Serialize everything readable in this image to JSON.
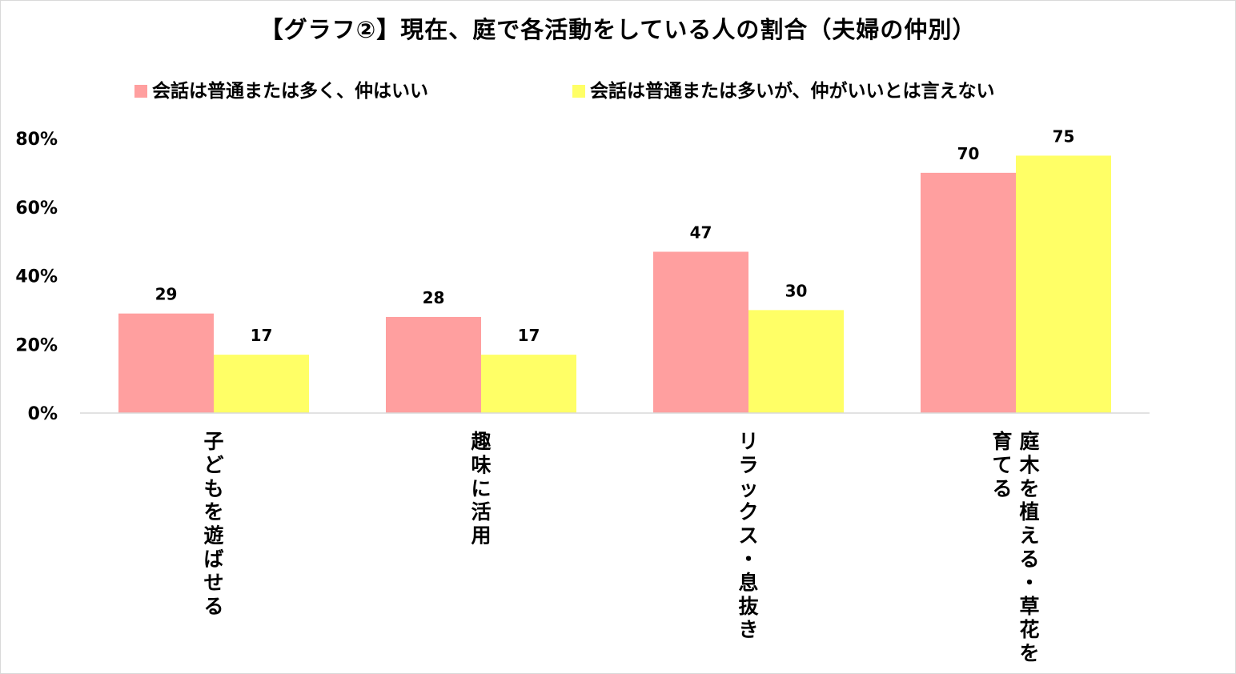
{
  "chart_data": {
    "type": "bar",
    "title": "【グラフ②】現在、庭で各活動をしている人の割合（夫婦の仲別）",
    "categories": [
      [
        "子どもを遊ばせる"
      ],
      [
        "趣味に活用"
      ],
      [
        "リラックス・息抜き"
      ],
      [
        "庭木を植える・草花を",
        "育てる"
      ]
    ],
    "series": [
      {
        "name": "会話は普通または多く、仲はいい",
        "color": "#ff9f9f",
        "values": [
          29,
          28,
          47,
          70
        ]
      },
      {
        "name": "会話は普通または多いが、仲がいいとは言えない",
        "color": "#ffff66",
        "values": [
          17,
          17,
          30,
          75
        ]
      }
    ],
    "ylim": [
      0,
      80
    ],
    "yticks": [
      0,
      20,
      40,
      60,
      80
    ],
    "ytick_labels": [
      "0%",
      "20%",
      "40%",
      "60%",
      "80%"
    ],
    "xlabel": "",
    "ylabel": "",
    "grid": false,
    "legend_position": "top"
  }
}
